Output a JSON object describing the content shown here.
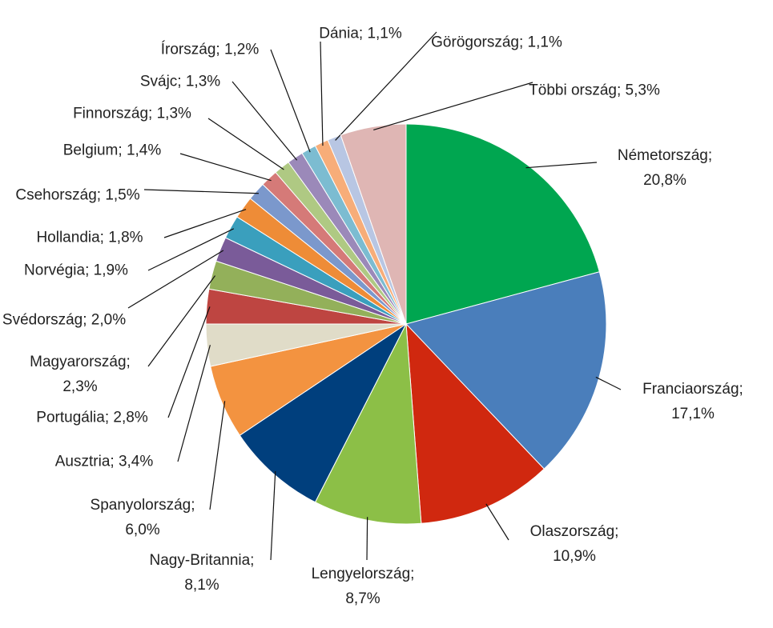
{
  "chart_data": {
    "type": "pie",
    "values": [
      20.8,
      17.1,
      10.9,
      8.7,
      8.1,
      6.0,
      3.4,
      2.8,
      2.3,
      2.0,
      1.9,
      1.8,
      1.5,
      1.4,
      1.3,
      1.3,
      1.2,
      1.1,
      1.1,
      5.3
    ],
    "value_labels": [
      "Németország; 20,8%",
      "Franciaország; 17,1%",
      "Olaszország; 10,9%",
      "Lengyelország; 8,7%",
      "Nagy-Britannia; 8,1%",
      "Spanyolország; 6,0%",
      "Ausztria; 3,4%",
      "Portugália; 2,8%",
      "Magyarország; 2,3%",
      "Svédország; 2,0%",
      "Norvégia; 1,9%",
      "Hollandia; 1,8%",
      "Csehország; 1,5%",
      "Belgium; 1,4%",
      "Finnország; 1,3%",
      "Svájc; 1,3%",
      "Írország; 1,2%",
      "Dánia; 1,1%",
      "Görögország; 1,1%",
      "Többi ország; 5,3%"
    ],
    "colors": [
      "#00a650",
      "#4a7ebb",
      "#d0280f",
      "#8cbf47",
      "#003f7d",
      "#f39340",
      "#e0dcc8",
      "#be4541",
      "#93b05a",
      "#7a5b99",
      "#3a9fbd",
      "#ee8c37",
      "#7b98cc",
      "#d57a78",
      "#afc983",
      "#9b89b9",
      "#7cbcd1",
      "#f7ad79",
      "#b8c6e3",
      "#dfb6b4"
    ]
  }
}
